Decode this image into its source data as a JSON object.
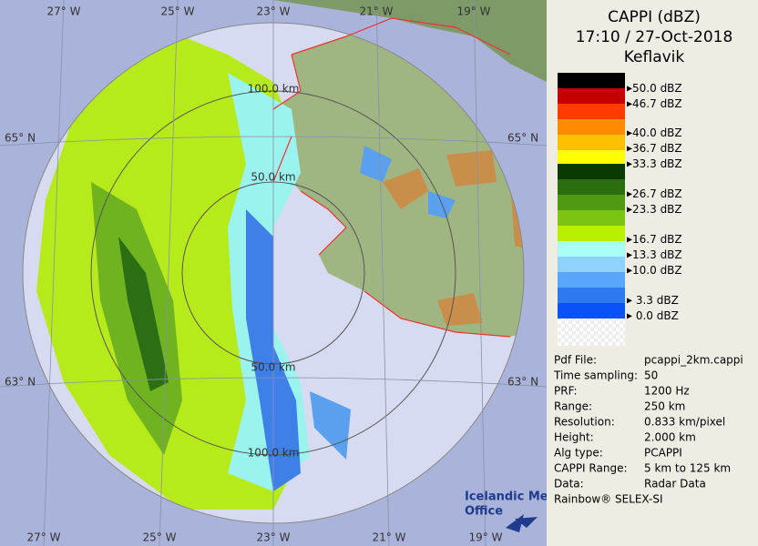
{
  "title": {
    "lines": [
      "CAPPI (dBZ)",
      "17:10 / 27-Oct-2018",
      "Keflavik"
    ]
  },
  "legend": {
    "labels": [
      "50.0 dBZ",
      "46.7 dBZ",
      "40.0 dBZ",
      "36.7 dBZ",
      "33.3 dBZ",
      "26.7 dBZ",
      "23.3 dBZ",
      "16.7 dBZ",
      "13.3 dBZ",
      "10.0 dBZ",
      "3.3 dBZ",
      "0.0 dBZ"
    ]
  },
  "info": {
    "rows": [
      [
        "Pdf File:",
        "pcappi_2km.cappi"
      ],
      [
        "Time sampling:",
        "50"
      ],
      [
        "PRF:",
        "1200 Hz"
      ],
      [
        "Range:",
        "250 km"
      ],
      [
        "Resolution:",
        "0.833 km/pixel"
      ],
      [
        "Height:",
        "2.000 km"
      ],
      [
        "Alg type:",
        "PCAPPI"
      ],
      [
        "CAPPI Range:",
        "5 km to 125 km"
      ],
      [
        "Data:",
        "Radar Data"
      ]
    ]
  },
  "footer": "Rainbow® SELEX-SI",
  "map": {
    "lon_top": [
      "27° W",
      "25° W",
      "23° W",
      "21° W",
      "19° W"
    ],
    "lon_bottom": [
      "27° W",
      "25° W",
      "23° W",
      "21° W",
      "19° W"
    ],
    "lat": [
      "65° N",
      "65° N",
      "63° N",
      "63° N"
    ],
    "range": [
      "100.0 km",
      "50.0 km",
      "50.0 km",
      "100.0 km"
    ]
  },
  "logo": [
    "Icelandic Met",
    "Office"
  ]
}
